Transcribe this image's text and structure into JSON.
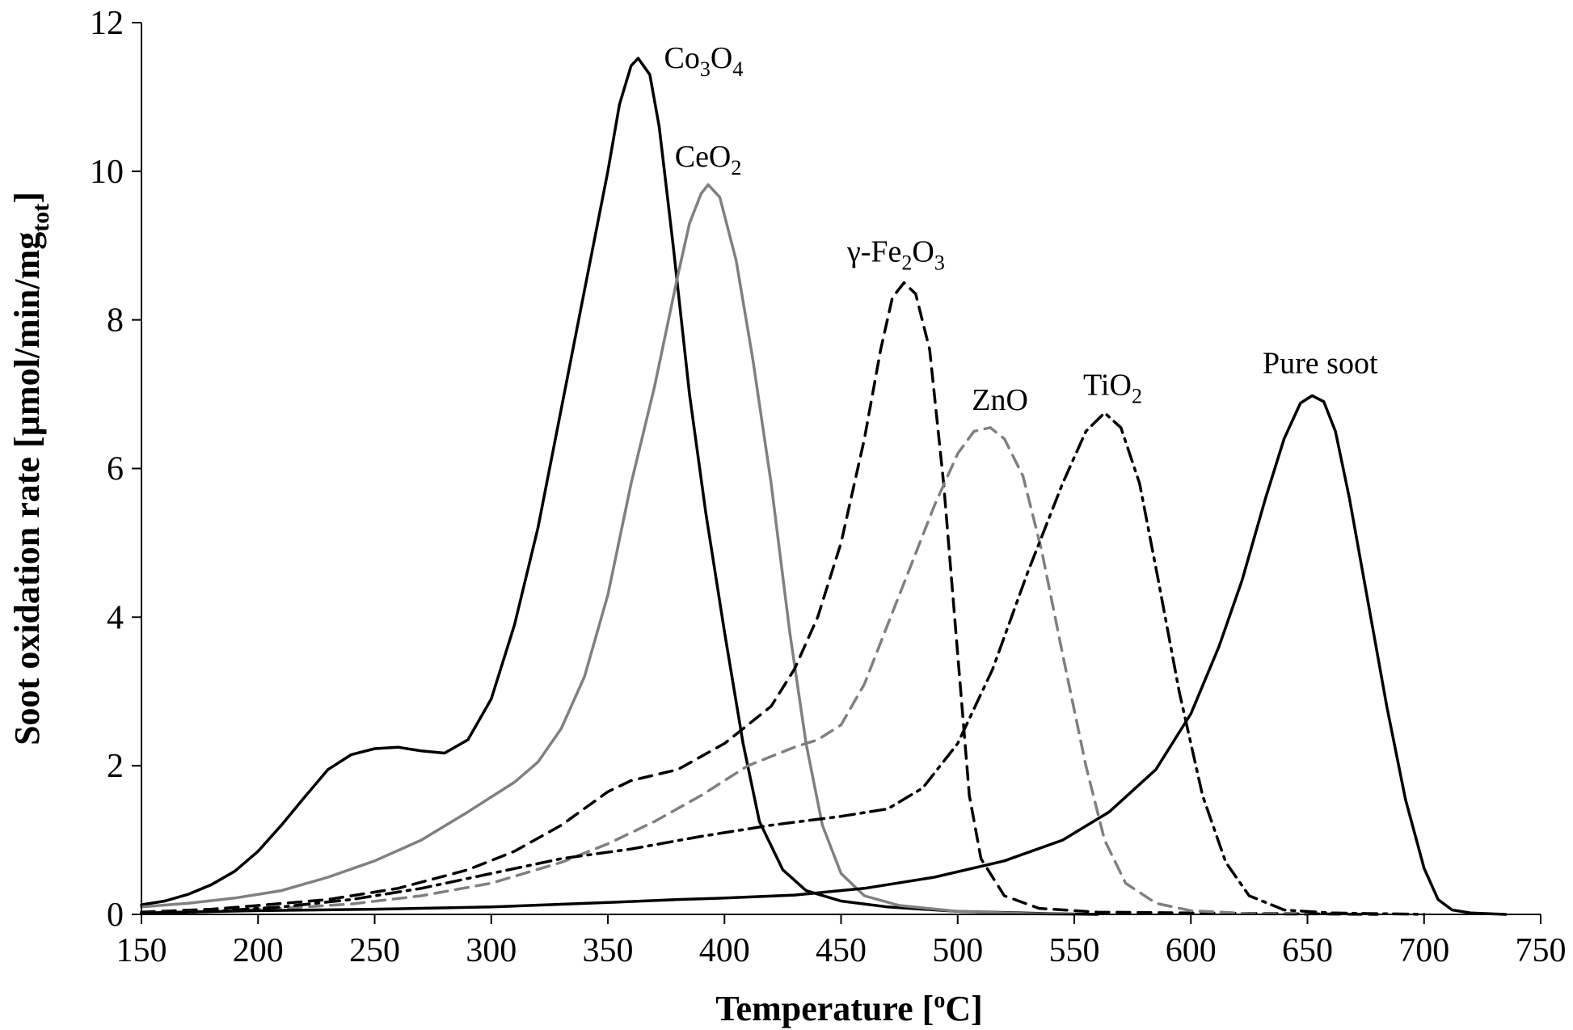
{
  "chart_data": {
    "type": "line",
    "xlabel": "Temperature [",
    "xlabel_sup": "o",
    "xlabel_end": "C]",
    "ylabel": "Soot oxidation rate [µmol/min/mg",
    "ylabel_sub": "tot",
    "ylabel_end": "]",
    "xlim": [
      150,
      750
    ],
    "ylim": [
      0,
      12
    ],
    "xticks": [
      150,
      200,
      250,
      300,
      350,
      400,
      450,
      500,
      550,
      600,
      650,
      700,
      750
    ],
    "yticks": [
      0,
      2,
      4,
      6,
      8,
      10,
      12
    ],
    "grid": false,
    "legend": "none",
    "series": [
      {
        "name": "Co3O4",
        "label_parts": [
          [
            "Co",
            ""
          ],
          [
            "3",
            "sub"
          ],
          [
            "O",
            ""
          ],
          [
            "4",
            "sub"
          ]
        ],
        "label_at": [
          363,
          11.5
        ],
        "color": "#000000",
        "dash": "solid",
        "points": [
          [
            150,
            0.13
          ],
          [
            160,
            0.18
          ],
          [
            170,
            0.27
          ],
          [
            180,
            0.4
          ],
          [
            190,
            0.58
          ],
          [
            200,
            0.85
          ],
          [
            210,
            1.2
          ],
          [
            220,
            1.58
          ],
          [
            230,
            1.95
          ],
          [
            240,
            2.15
          ],
          [
            250,
            2.23
          ],
          [
            260,
            2.25
          ],
          [
            270,
            2.2
          ],
          [
            280,
            2.17
          ],
          [
            290,
            2.35
          ],
          [
            300,
            2.9
          ],
          [
            310,
            3.9
          ],
          [
            320,
            5.2
          ],
          [
            330,
            6.8
          ],
          [
            340,
            8.4
          ],
          [
            350,
            10.0
          ],
          [
            355,
            10.9
          ],
          [
            360,
            11.42
          ],
          [
            363,
            11.52
          ],
          [
            368,
            11.3
          ],
          [
            372,
            10.6
          ],
          [
            378,
            9.0
          ],
          [
            385,
            7.0
          ],
          [
            392,
            5.4
          ],
          [
            400,
            3.8
          ],
          [
            408,
            2.3
          ],
          [
            415,
            1.25
          ],
          [
            425,
            0.6
          ],
          [
            435,
            0.32
          ],
          [
            450,
            0.18
          ],
          [
            470,
            0.1
          ],
          [
            500,
            0.04
          ],
          [
            540,
            0.01
          ],
          [
            560,
            0.0
          ]
        ]
      },
      {
        "name": "CeO2",
        "label_parts": [
          [
            "CeO",
            ""
          ],
          [
            "2",
            "sub"
          ]
        ],
        "label_at": [
          393,
          9.8
        ],
        "color": "#808080",
        "dash": "solid",
        "points": [
          [
            150,
            0.1
          ],
          [
            170,
            0.15
          ],
          [
            190,
            0.22
          ],
          [
            210,
            0.32
          ],
          [
            230,
            0.5
          ],
          [
            250,
            0.72
          ],
          [
            270,
            1.0
          ],
          [
            290,
            1.38
          ],
          [
            310,
            1.78
          ],
          [
            320,
            2.05
          ],
          [
            330,
            2.5
          ],
          [
            340,
            3.2
          ],
          [
            350,
            4.3
          ],
          [
            360,
            5.8
          ],
          [
            370,
            7.1
          ],
          [
            380,
            8.6
          ],
          [
            385,
            9.3
          ],
          [
            390,
            9.7
          ],
          [
            393,
            9.82
          ],
          [
            398,
            9.65
          ],
          [
            405,
            8.8
          ],
          [
            412,
            7.5
          ],
          [
            420,
            5.8
          ],
          [
            428,
            3.8
          ],
          [
            435,
            2.3
          ],
          [
            442,
            1.2
          ],
          [
            450,
            0.55
          ],
          [
            460,
            0.25
          ],
          [
            475,
            0.12
          ],
          [
            500,
            0.04
          ],
          [
            530,
            0.01
          ],
          [
            550,
            0.0
          ]
        ]
      },
      {
        "name": "γ-Fe2O3",
        "label_parts": [
          [
            "γ-Fe",
            ""
          ],
          [
            "2",
            "sub"
          ],
          [
            "O",
            ""
          ],
          [
            "3",
            "sub"
          ]
        ],
        "label_at": [
          477,
          8.5
        ],
        "color": "#000000",
        "dash": "dashed",
        "points": [
          [
            150,
            0.03
          ],
          [
            180,
            0.07
          ],
          [
            200,
            0.12
          ],
          [
            230,
            0.2
          ],
          [
            260,
            0.35
          ],
          [
            290,
            0.6
          ],
          [
            310,
            0.85
          ],
          [
            330,
            1.2
          ],
          [
            350,
            1.65
          ],
          [
            360,
            1.8
          ],
          [
            380,
            1.95
          ],
          [
            400,
            2.3
          ],
          [
            420,
            2.8
          ],
          [
            430,
            3.3
          ],
          [
            440,
            4.0
          ],
          [
            450,
            5.0
          ],
          [
            460,
            6.4
          ],
          [
            467,
            7.6
          ],
          [
            472,
            8.3
          ],
          [
            477,
            8.5
          ],
          [
            482,
            8.35
          ],
          [
            488,
            7.6
          ],
          [
            494,
            5.8
          ],
          [
            500,
            3.5
          ],
          [
            505,
            1.6
          ],
          [
            510,
            0.75
          ],
          [
            520,
            0.25
          ],
          [
            535,
            0.08
          ],
          [
            560,
            0.03
          ],
          [
            600,
            0.02
          ],
          [
            640,
            0.01
          ],
          [
            680,
            0.0
          ]
        ]
      },
      {
        "name": "ZnO",
        "label_parts": [
          [
            "ZnO",
            ""
          ]
        ],
        "label_at": [
          514,
          6.55
        ],
        "color": "#808080",
        "dash": "dashed",
        "points": [
          [
            150,
            0.02
          ],
          [
            180,
            0.04
          ],
          [
            210,
            0.08
          ],
          [
            240,
            0.14
          ],
          [
            270,
            0.25
          ],
          [
            300,
            0.42
          ],
          [
            330,
            0.7
          ],
          [
            350,
            0.95
          ],
          [
            370,
            1.25
          ],
          [
            390,
            1.6
          ],
          [
            410,
            2.0
          ],
          [
            430,
            2.25
          ],
          [
            440,
            2.35
          ],
          [
            450,
            2.55
          ],
          [
            460,
            3.1
          ],
          [
            470,
            3.9
          ],
          [
            480,
            4.7
          ],
          [
            490,
            5.5
          ],
          [
            500,
            6.2
          ],
          [
            507,
            6.5
          ],
          [
            514,
            6.55
          ],
          [
            520,
            6.4
          ],
          [
            528,
            5.9
          ],
          [
            536,
            4.9
          ],
          [
            545,
            3.5
          ],
          [
            555,
            2.0
          ],
          [
            563,
            1.0
          ],
          [
            572,
            0.42
          ],
          [
            585,
            0.15
          ],
          [
            600,
            0.05
          ],
          [
            625,
            0.01
          ],
          [
            650,
            0.0
          ]
        ]
      },
      {
        "name": "TiO2",
        "label_parts": [
          [
            "TiO",
            ""
          ],
          [
            "2",
            "sub"
          ]
        ],
        "label_at": [
          563,
          6.75
        ],
        "color": "#000000",
        "dash": "dashdot",
        "points": [
          [
            150,
            0.01
          ],
          [
            180,
            0.04
          ],
          [
            210,
            0.1
          ],
          [
            240,
            0.2
          ],
          [
            270,
            0.35
          ],
          [
            300,
            0.55
          ],
          [
            330,
            0.75
          ],
          [
            360,
            0.88
          ],
          [
            390,
            1.05
          ],
          [
            420,
            1.2
          ],
          [
            450,
            1.32
          ],
          [
            470,
            1.42
          ],
          [
            485,
            1.7
          ],
          [
            500,
            2.3
          ],
          [
            515,
            3.3
          ],
          [
            530,
            4.6
          ],
          [
            545,
            5.8
          ],
          [
            555,
            6.5
          ],
          [
            563,
            6.75
          ],
          [
            570,
            6.55
          ],
          [
            578,
            5.8
          ],
          [
            586,
            4.5
          ],
          [
            595,
            3.0
          ],
          [
            605,
            1.6
          ],
          [
            615,
            0.7
          ],
          [
            625,
            0.25
          ],
          [
            640,
            0.06
          ],
          [
            660,
            0.02
          ],
          [
            700,
            0.0
          ]
        ]
      },
      {
        "name": "Pure soot",
        "label_parts": [
          [
            "Pure soot",
            ""
          ]
        ],
        "label_at": [
          652,
          6.98
        ],
        "color": "#000000",
        "dash": "solid",
        "points": [
          [
            150,
            0.02
          ],
          [
            200,
            0.05
          ],
          [
            250,
            0.07
          ],
          [
            300,
            0.1
          ],
          [
            350,
            0.16
          ],
          [
            380,
            0.2
          ],
          [
            400,
            0.22
          ],
          [
            430,
            0.26
          ],
          [
            460,
            0.35
          ],
          [
            490,
            0.5
          ],
          [
            520,
            0.72
          ],
          [
            545,
            1.0
          ],
          [
            565,
            1.38
          ],
          [
            585,
            1.95
          ],
          [
            600,
            2.7
          ],
          [
            612,
            3.6
          ],
          [
            622,
            4.5
          ],
          [
            632,
            5.6
          ],
          [
            640,
            6.4
          ],
          [
            647,
            6.88
          ],
          [
            652,
            6.98
          ],
          [
            657,
            6.9
          ],
          [
            662,
            6.5
          ],
          [
            668,
            5.6
          ],
          [
            676,
            4.2
          ],
          [
            684,
            2.8
          ],
          [
            692,
            1.55
          ],
          [
            700,
            0.62
          ],
          [
            706,
            0.2
          ],
          [
            712,
            0.06
          ],
          [
            720,
            0.02
          ],
          [
            735,
            0.0
          ]
        ]
      }
    ]
  }
}
